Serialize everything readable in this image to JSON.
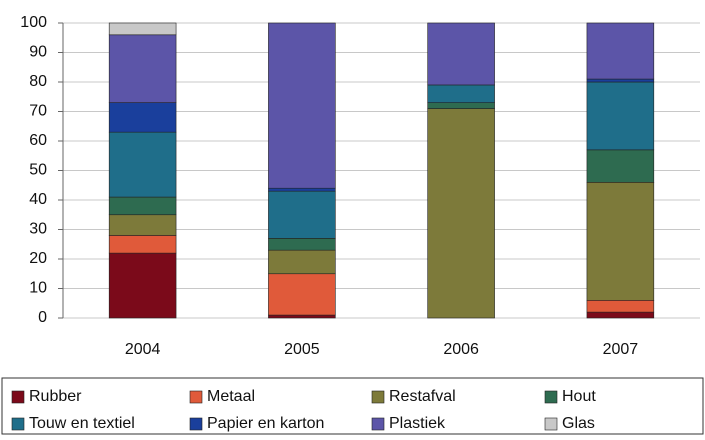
{
  "chart_data": {
    "type": "stacked_bar",
    "categories": [
      "2004",
      "2005",
      "2006",
      "2007"
    ],
    "series": [
      {
        "name": "Rubber",
        "color": "#7b0a1a",
        "values": [
          22,
          1,
          0,
          2
        ]
      },
      {
        "name": "Metaal",
        "color": "#e05a3a",
        "values": [
          6,
          14,
          0,
          4
        ]
      },
      {
        "name": "Restafval",
        "color": "#7d7a3a",
        "values": [
          7,
          8,
          71,
          40
        ]
      },
      {
        "name": "Hout",
        "color": "#2e6b50",
        "values": [
          6,
          4,
          2,
          11
        ]
      },
      {
        "name": "Touw en textiel",
        "color": "#1f6e8a",
        "values": [
          22,
          16,
          6,
          23
        ]
      },
      {
        "name": "Papier en karton",
        "color": "#1a3f9c",
        "values": [
          10,
          1,
          0,
          1
        ]
      },
      {
        "name": "Plastiek",
        "color": "#5c55a8",
        "values": [
          23,
          56,
          21,
          19
        ]
      },
      {
        "name": "Glas",
        "color": "#c8c8c8",
        "values": [
          4,
          0,
          0,
          0
        ]
      }
    ],
    "ylim": [
      0,
      100
    ],
    "yticks": [
      0,
      10,
      20,
      30,
      40,
      50,
      60,
      70,
      80,
      90,
      100
    ],
    "grid": true
  }
}
